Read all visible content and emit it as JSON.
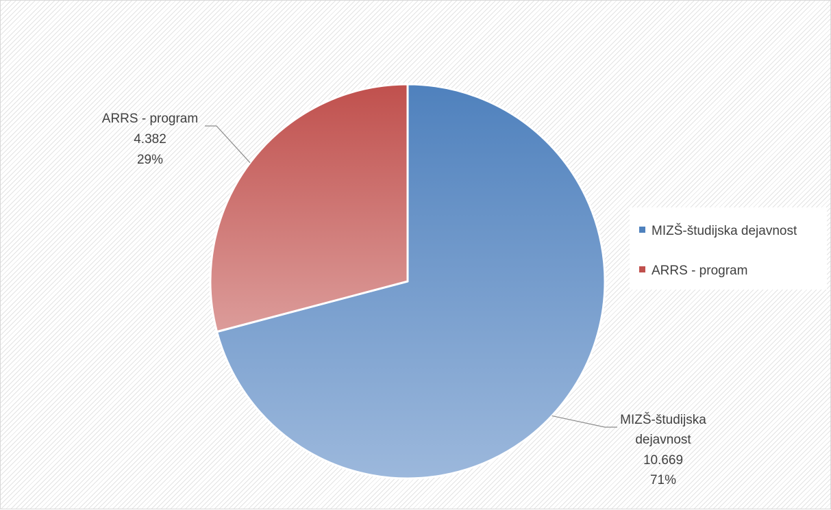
{
  "chart_data": {
    "type": "pie",
    "title": "",
    "categories": [
      "MIZŠ-študijska dejavnost",
      "ARRS - program"
    ],
    "values": [
      10669,
      4382
    ],
    "value_labels": [
      "10.669",
      "4.382"
    ],
    "percent_labels": [
      "71%",
      "29%"
    ],
    "label_lines": [
      [
        "MIZŠ-študijska",
        "dejavnost"
      ],
      [
        "ARRS - program"
      ]
    ],
    "colors": {
      "MIZŠ-študijska dejavnost": {
        "dark": "#4f81bd",
        "light": "#9cb8dc"
      },
      "ARRS - program": {
        "dark": "#c0504d",
        "light": "#dc9c9a"
      }
    },
    "legend": {
      "position": "right",
      "items": [
        "MIZŠ-študijska dejavnost",
        "ARRS - program"
      ]
    },
    "data_labels": "category-value-percent with leader lines"
  }
}
